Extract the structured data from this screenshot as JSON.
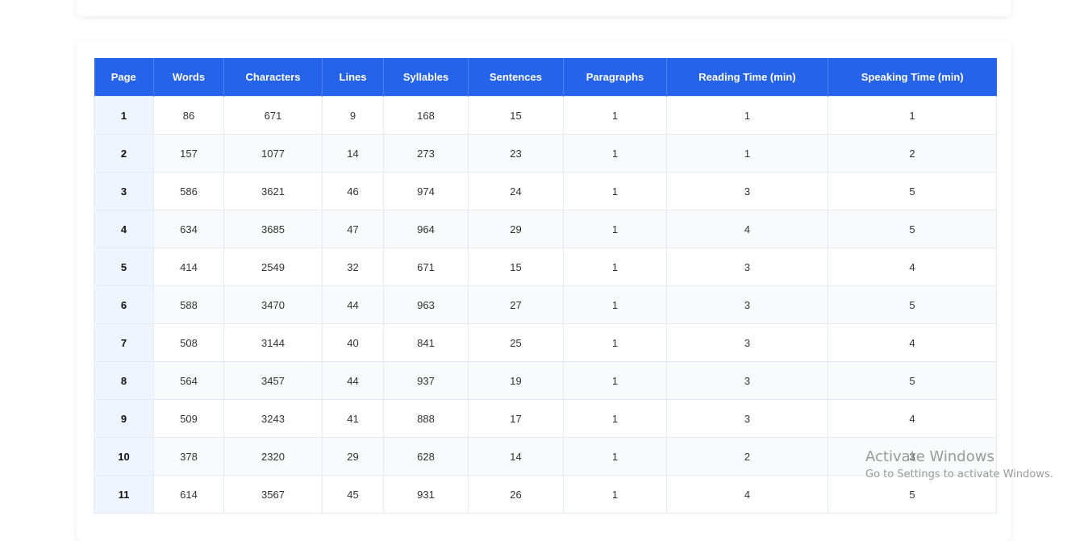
{
  "table": {
    "headers": [
      "Page",
      "Words",
      "Characters",
      "Lines",
      "Syllables",
      "Sentences",
      "Paragraphs",
      "Reading Time (min)",
      "Speaking Time (min)"
    ],
    "rows": [
      [
        "1",
        "86",
        "671",
        "9",
        "168",
        "15",
        "1",
        "1",
        "1"
      ],
      [
        "2",
        "157",
        "1077",
        "14",
        "273",
        "23",
        "1",
        "1",
        "2"
      ],
      [
        "3",
        "586",
        "3621",
        "46",
        "974",
        "24",
        "1",
        "3",
        "5"
      ],
      [
        "4",
        "634",
        "3685",
        "47",
        "964",
        "29",
        "1",
        "4",
        "5"
      ],
      [
        "5",
        "414",
        "2549",
        "32",
        "671",
        "15",
        "1",
        "3",
        "4"
      ],
      [
        "6",
        "588",
        "3470",
        "44",
        "963",
        "27",
        "1",
        "3",
        "5"
      ],
      [
        "7",
        "508",
        "3144",
        "40",
        "841",
        "25",
        "1",
        "3",
        "4"
      ],
      [
        "8",
        "564",
        "3457",
        "44",
        "937",
        "19",
        "1",
        "3",
        "5"
      ],
      [
        "9",
        "509",
        "3243",
        "41",
        "888",
        "17",
        "1",
        "3",
        "4"
      ],
      [
        "10",
        "378",
        "2320",
        "29",
        "628",
        "14",
        "1",
        "2",
        "3"
      ],
      [
        "11",
        "614",
        "3567",
        "45",
        "931",
        "26",
        "1",
        "4",
        "5"
      ]
    ]
  },
  "watermark": {
    "title": "Activate Windows",
    "subtitle": "Go to Settings to activate Windows."
  },
  "colors": {
    "header_bg": "#2563eb",
    "page_col_bg": "#eef5ff",
    "stripe_bg": "#f8fafc"
  }
}
